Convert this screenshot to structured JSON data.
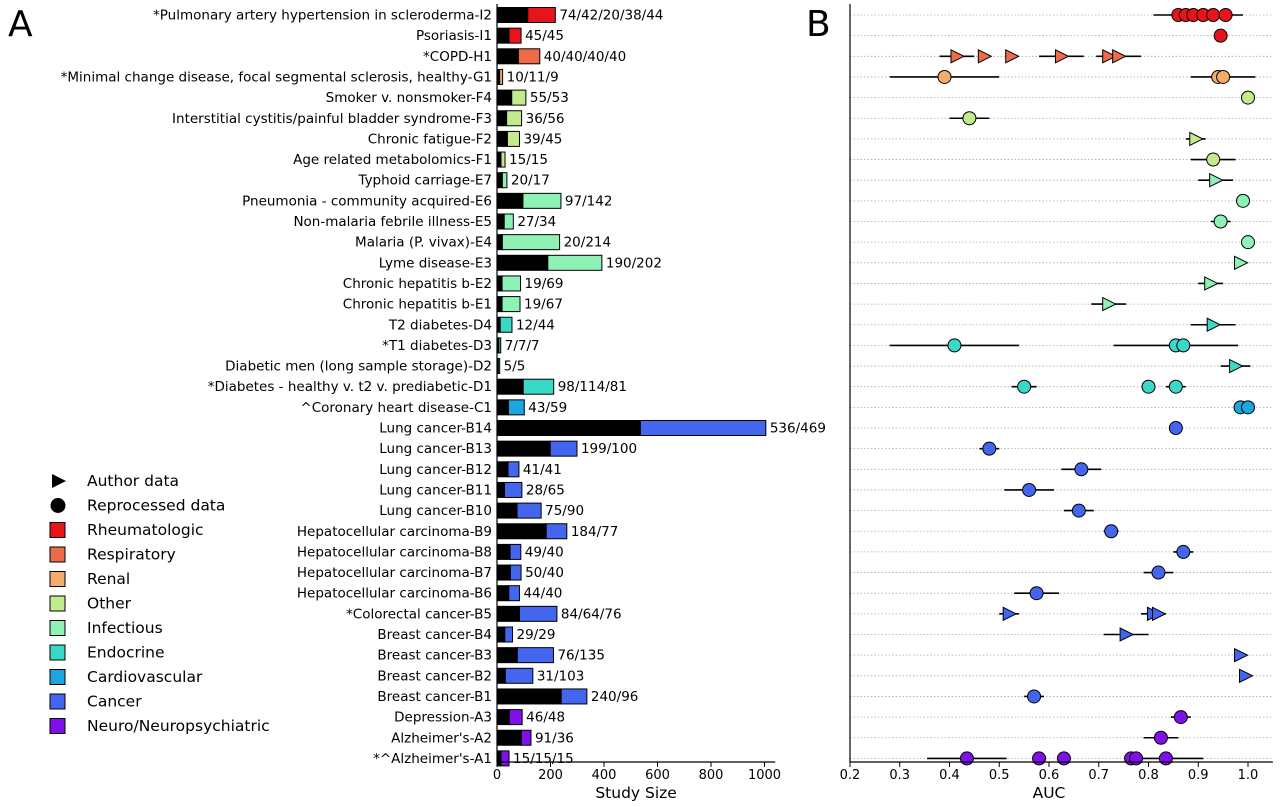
{
  "panel_a_label": "A",
  "panel_b_label": "B",
  "legend": {
    "items": [
      {
        "label": "Author data",
        "kind": "triangle"
      },
      {
        "label": "Reprocessed data",
        "kind": "circle"
      },
      {
        "label": "Rheumatologic",
        "color": "#e8141c"
      },
      {
        "label": "Respiratory",
        "color": "#ee6b4a"
      },
      {
        "label": "Renal",
        "color": "#f2ad6b"
      },
      {
        "label": "Other",
        "color": "#c3ea8c"
      },
      {
        "label": "Infectious",
        "color": "#8ef2b6"
      },
      {
        "label": "Endocrine",
        "color": "#3ad8c6"
      },
      {
        "label": "Cardiovascular",
        "color": "#1ca6df"
      },
      {
        "label": "Cancer",
        "color": "#4466ee"
      },
      {
        "label": "Neuro/Neuropsychiatric",
        "color": "#8010e8"
      }
    ]
  },
  "chart_data": [
    {
      "type": "bar",
      "stacked": true,
      "orientation": "horizontal",
      "xlabel": "Study Size",
      "xlim": [
        0,
        1040
      ],
      "xticks": [
        0,
        200,
        400,
        600,
        800,
        1000
      ],
      "categories": [
        "*Pulmonary artery hypertension in scleroderma-I2",
        "Psoriasis-I1",
        "*COPD-H1",
        "*Minimal change disease, focal segmental sclerosis, healthy-G1",
        "Smoker v. nonsmoker-F4",
        "Interstitial cystitis/painful bladder syndrome-F3",
        "Chronic fatigue-F2",
        "Age related metabolomics-F1",
        "Typhoid carriage-E7",
        "Pneumonia - community acquired-E6",
        "Non-malaria febrile illness-E5",
        "Malaria (P. vivax)-E4",
        "Lyme disease-E3",
        "Chronic hepatitis b-E2",
        "Chronic hepatitis b-E1",
        "T2 diabetes-D4",
        "*T1 diabetes-D3",
        "Diabetic men (long sample storage)-D2",
        "*Diabetes - healthy v. t2 v. prediabetic-D1",
        "^Coronary heart disease-C1",
        "Lung cancer-B14",
        "Lung cancer-B13",
        "Lung cancer-B12",
        "Lung cancer-B11",
        "Lung cancer-B10",
        "Hepatocellular carcinoma-B9",
        "Hepatocellular carcinoma-B8",
        "Hepatocellular carcinoma-B7",
        "Hepatocellular carcinoma-B6",
        "*Colorectal cancer-B5",
        "Breast cancer-B4",
        "Breast cancer-B3",
        "Breast cancer-B2",
        "Breast cancer-B1",
        "Depression-A3",
        "Alzheimer's-A2",
        "*^Alzheimer's-A1"
      ],
      "value_labels": [
        "74/42/20/38/44",
        "45/45",
        "40/40/40/40",
        "10/11/9",
        "55/53",
        "36/56",
        "39/45",
        "15/15",
        "20/17",
        "97/142",
        "27/34",
        "20/214",
        "190/202",
        "19/69",
        "19/67",
        "12/44",
        "7/7/7",
        "5/5",
        "98/114/81",
        "43/59",
        "536/469",
        "199/100",
        "41/41",
        "28/65",
        "75/90",
        "184/77",
        "49/40",
        "50/40",
        "44/40",
        "84/64/76",
        "29/29",
        "76/135",
        "31/103",
        "240/96",
        "46/48",
        "91/36",
        "15/15/15"
      ],
      "series": [
        {
          "name": "",
          "color": "#000000",
          "values": [
            115,
            45,
            80,
            10,
            55,
            36,
            39,
            15,
            20,
            97,
            27,
            20,
            190,
            19,
            19,
            12,
            7,
            5,
            98,
            43,
            536,
            199,
            41,
            28,
            75,
            184,
            49,
            50,
            44,
            84,
            29,
            76,
            31,
            240,
            46,
            91,
            15
          ]
        },
        {
          "name": "",
          "color": "category",
          "values": [
            103,
            45,
            80,
            11,
            53,
            56,
            45,
            15,
            17,
            142,
            34,
            214,
            202,
            69,
            67,
            44,
            7,
            5,
            114,
            59,
            469,
            100,
            41,
            65,
            90,
            77,
            40,
            40,
            40,
            140,
            29,
            135,
            103,
            96,
            48,
            36,
            30
          ]
        }
      ],
      "category_groups": [
        "Rheumatologic",
        "Rheumatologic",
        "Respiratory",
        "Renal",
        "Other",
        "Other",
        "Other",
        "Other",
        "Infectious",
        "Infectious",
        "Infectious",
        "Infectious",
        "Infectious",
        "Infectious",
        "Infectious",
        "Endocrine",
        "Endocrine",
        "Endocrine",
        "Endocrine",
        "Cardiovascular",
        "Cancer",
        "Cancer",
        "Cancer",
        "Cancer",
        "Cancer",
        "Cancer",
        "Cancer",
        "Cancer",
        "Cancer",
        "Cancer",
        "Cancer",
        "Cancer",
        "Cancer",
        "Cancer",
        "Neuro/Neuropsychiatric",
        "Neuro/Neuropsychiatric",
        "Neuro/Neuropsychiatric"
      ]
    },
    {
      "type": "scatter",
      "xlabel": "AUC",
      "xlim": [
        0.2,
        1.05
      ],
      "xticks": [
        0.2,
        0.3,
        0.4,
        0.5,
        0.6,
        0.7,
        0.8,
        0.9,
        1.0
      ],
      "grid": "horizontal dotted",
      "rows": [
        {
          "dataset": "I2",
          "group": "Rheumatologic",
          "shape": "circle",
          "points": [
            {
              "x": 0.86,
              "err": 0.05
            },
            {
              "x": 0.875
            },
            {
              "x": 0.89
            },
            {
              "x": 0.91
            },
            {
              "x": 0.93
            },
            {
              "x": 0.955,
              "err": 0.035
            }
          ]
        },
        {
          "dataset": "I1",
          "group": "Rheumatologic",
          "shape": "circle",
          "points": [
            {
              "x": 0.945
            }
          ]
        },
        {
          "dataset": "H1",
          "group": "Respiratory",
          "shape": "triangle",
          "points": [
            {
              "x": 0.415,
              "err": 0.035
            },
            {
              "x": 0.47
            },
            {
              "x": 0.525
            },
            {
              "x": 0.625,
              "err": 0.045
            },
            {
              "x": 0.72
            },
            {
              "x": 0.74,
              "err": 0.045
            }
          ]
        },
        {
          "dataset": "G1",
          "group": "Renal",
          "shape": "circle",
          "points": [
            {
              "x": 0.39,
              "err": 0.11
            },
            {
              "x": 0.94
            },
            {
              "x": 0.95,
              "err": 0.065
            }
          ]
        },
        {
          "dataset": "F4",
          "group": "Other",
          "shape": "circle",
          "points": [
            {
              "x": 1.0
            }
          ]
        },
        {
          "dataset": "F3",
          "group": "Other",
          "shape": "circle",
          "points": [
            {
              "x": 0.44,
              "err": 0.04
            }
          ]
        },
        {
          "dataset": "F2",
          "group": "Other",
          "shape": "triangle",
          "points": [
            {
              "x": 0.895,
              "err": 0.02
            }
          ]
        },
        {
          "dataset": "F1",
          "group": "Other",
          "shape": "circle",
          "points": [
            {
              "x": 0.93,
              "err": 0.045
            }
          ]
        },
        {
          "dataset": "E7",
          "group": "Infectious",
          "shape": "triangle",
          "points": [
            {
              "x": 0.935,
              "err": 0.035
            }
          ]
        },
        {
          "dataset": "E6",
          "group": "Infectious",
          "shape": "circle",
          "points": [
            {
              "x": 0.99
            }
          ]
        },
        {
          "dataset": "E5",
          "group": "Infectious",
          "shape": "circle",
          "points": [
            {
              "x": 0.945,
              "err": 0.02
            }
          ]
        },
        {
          "dataset": "E4",
          "group": "Infectious",
          "shape": "circle",
          "points": [
            {
              "x": 1.0
            }
          ]
        },
        {
          "dataset": "E3",
          "group": "Infectious",
          "shape": "triangle",
          "points": [
            {
              "x": 0.985
            }
          ]
        },
        {
          "dataset": "E2",
          "group": "Infectious",
          "shape": "triangle",
          "points": [
            {
              "x": 0.925,
              "err": 0.025
            }
          ]
        },
        {
          "dataset": "E1",
          "group": "Infectious",
          "shape": "triangle",
          "points": [
            {
              "x": 0.72,
              "err": 0.035
            }
          ]
        },
        {
          "dataset": "D4",
          "group": "Endocrine",
          "shape": "triangle",
          "points": [
            {
              "x": 0.93,
              "err": 0.045
            }
          ]
        },
        {
          "dataset": "D3",
          "group": "Endocrine",
          "shape": "circle",
          "points": [
            {
              "x": 0.41,
              "err": 0.13
            },
            {
              "x": 0.855,
              "err": 0.125
            },
            {
              "x": 0.87
            }
          ]
        },
        {
          "dataset": "D2",
          "group": "Endocrine",
          "shape": "triangle",
          "points": [
            {
              "x": 0.975,
              "err": 0.03
            }
          ]
        },
        {
          "dataset": "D1",
          "group": "Endocrine",
          "shape": "circle",
          "points": [
            {
              "x": 0.55,
              "err": 0.025
            },
            {
              "x": 0.8
            },
            {
              "x": 0.855,
              "err": 0.02
            }
          ]
        },
        {
          "dataset": "C1",
          "group": "Cardiovascular",
          "shape": "circle",
          "points": [
            {
              "x": 0.985,
              "err": 0.01
            },
            {
              "x": 1.0
            }
          ]
        },
        {
          "dataset": "B14",
          "group": "Cancer",
          "shape": "circle",
          "points": [
            {
              "x": 0.855
            }
          ]
        },
        {
          "dataset": "B13",
          "group": "Cancer",
          "shape": "circle",
          "points": [
            {
              "x": 0.48,
              "err": 0.02
            }
          ]
        },
        {
          "dataset": "B12",
          "group": "Cancer",
          "shape": "circle",
          "points": [
            {
              "x": 0.665,
              "err": 0.04
            }
          ]
        },
        {
          "dataset": "B11",
          "group": "Cancer",
          "shape": "circle",
          "points": [
            {
              "x": 0.56,
              "err": 0.05
            }
          ]
        },
        {
          "dataset": "B10",
          "group": "Cancer",
          "shape": "circle",
          "points": [
            {
              "x": 0.66,
              "err": 0.03
            }
          ]
        },
        {
          "dataset": "B9",
          "group": "Cancer",
          "shape": "circle",
          "points": [
            {
              "x": 0.725,
              "err": 0.015
            }
          ]
        },
        {
          "dataset": "B8",
          "group": "Cancer",
          "shape": "circle",
          "points": [
            {
              "x": 0.87,
              "err": 0.02
            }
          ]
        },
        {
          "dataset": "B7",
          "group": "Cancer",
          "shape": "circle",
          "points": [
            {
              "x": 0.82,
              "err": 0.03
            }
          ]
        },
        {
          "dataset": "B6",
          "group": "Cancer",
          "shape": "circle",
          "points": [
            {
              "x": 0.575,
              "err": 0.045
            }
          ]
        },
        {
          "dataset": "B5",
          "group": "Cancer",
          "shape": "triangle",
          "points": [
            {
              "x": 0.52,
              "err": 0.02
            },
            {
              "x": 0.81,
              "err": 0.025
            },
            {
              "x": 0.82
            }
          ]
        },
        {
          "dataset": "B4",
          "group": "Cancer",
          "shape": "triangle",
          "points": [
            {
              "x": 0.755,
              "err": 0.045
            }
          ]
        },
        {
          "dataset": "B3",
          "group": "Cancer",
          "shape": "triangle",
          "points": [
            {
              "x": 0.985
            }
          ]
        },
        {
          "dataset": "B2",
          "group": "Cancer",
          "shape": "triangle",
          "points": [
            {
              "x": 0.995
            }
          ]
        },
        {
          "dataset": "B1",
          "group": "Cancer",
          "shape": "circle",
          "points": [
            {
              "x": 0.57,
              "err": 0.02
            }
          ]
        },
        {
          "dataset": "A3",
          "group": "Neuro/Neuropsychiatric",
          "shape": "circle",
          "points": [
            {
              "x": 0.865,
              "err": 0.02
            }
          ]
        },
        {
          "dataset": "A2",
          "group": "Neuro/Neuropsychiatric",
          "shape": "circle",
          "points": [
            {
              "x": 0.825,
              "err": 0.035
            }
          ]
        },
        {
          "dataset": "A1",
          "group": "Neuro/Neuropsychiatric",
          "shape": "circle",
          "points": [
            {
              "x": 0.435,
              "err": 0.08
            },
            {
              "x": 0.58
            },
            {
              "x": 0.63
            },
            {
              "x": 0.765
            },
            {
              "x": 0.775
            },
            {
              "x": 0.835,
              "err": 0.075
            }
          ]
        }
      ]
    }
  ]
}
